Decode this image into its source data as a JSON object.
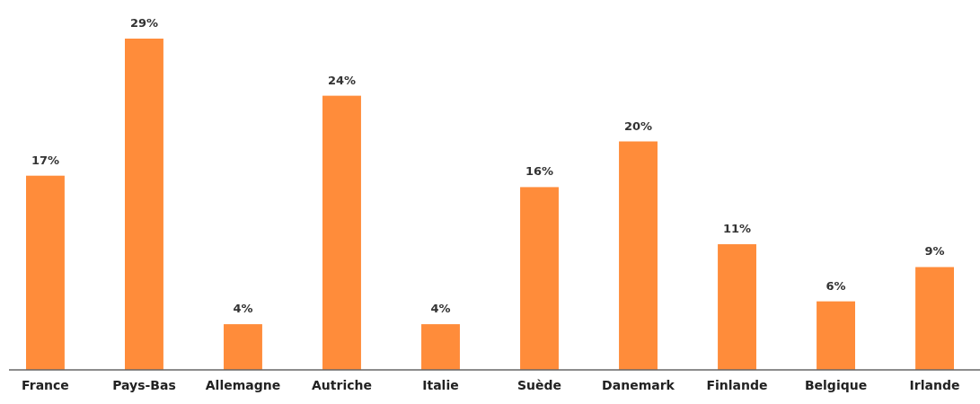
{
  "chart_data": {
    "type": "bar",
    "categories": [
      "France",
      "Pays-Bas",
      "Allemagne",
      "Autriche",
      "Italie",
      "Suède",
      "Danemark",
      "Finlande",
      "Belgique",
      "Irlande"
    ],
    "values": [
      17,
      29,
      4,
      24,
      4,
      16,
      20,
      11,
      6,
      9
    ],
    "value_labels": [
      "17%",
      "29%",
      "4%",
      "24%",
      "4%",
      "16%",
      "20%",
      "11%",
      "6%",
      "9%"
    ],
    "color": "#ff8c3a"
  }
}
